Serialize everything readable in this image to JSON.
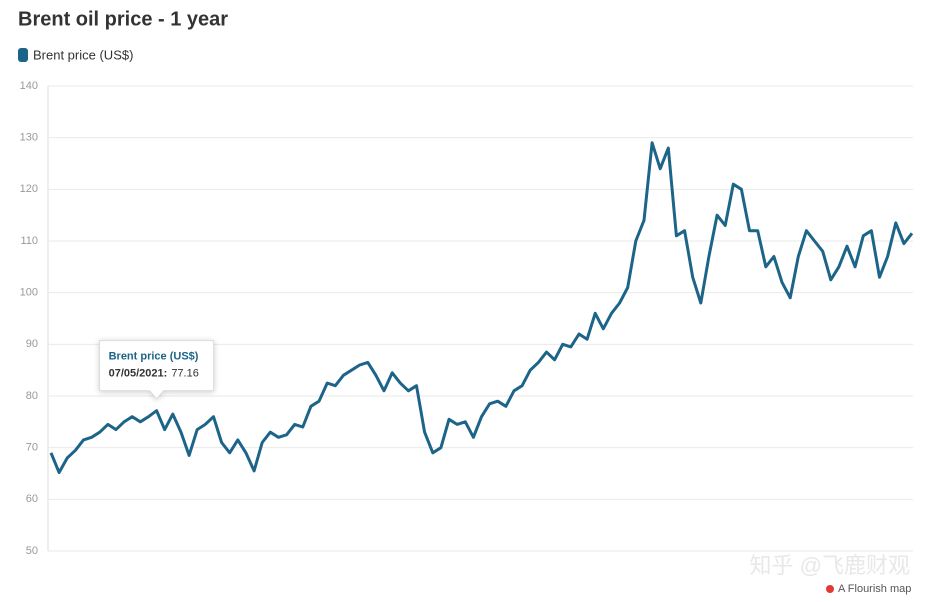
{
  "chart_data": {
    "type": "line",
    "title": "Brent oil price - 1 year",
    "series": [
      {
        "name": "Brent price (US$)",
        "color": "#1d6489",
        "values": [
          69,
          65.2,
          68,
          69.5,
          71.5,
          72,
          73,
          74.5,
          73.5,
          75,
          76,
          75,
          76,
          77.16,
          73.5,
          76.5,
          73,
          68.5,
          73.5,
          74.5,
          76,
          71,
          69,
          71.5,
          69,
          65.5,
          71,
          73,
          72,
          72.5,
          74.5,
          74,
          78,
          79,
          82.5,
          82,
          84,
          85,
          86,
          86.5,
          84,
          81,
          84.5,
          82.5,
          81,
          82,
          73,
          69,
          70,
          75.5,
          74.5,
          75,
          72,
          76,
          78.5,
          79,
          78,
          81,
          82,
          85,
          86.5,
          88.5,
          87,
          90,
          89.5,
          92,
          91,
          96,
          93,
          96,
          98,
          101,
          110,
          114,
          129,
          124,
          128,
          111,
          112,
          103,
          98,
          107,
          115,
          113,
          121,
          120,
          112,
          112,
          105,
          107,
          102,
          99,
          107,
          112,
          110,
          108,
          102.5,
          105,
          109,
          105,
          111,
          112,
          103,
          107,
          113.5,
          109.5,
          111.5
        ]
      }
    ],
    "ylim": [
      50,
      140
    ],
    "yticks": [
      50,
      60,
      70,
      80,
      90,
      100,
      110,
      120,
      130,
      140
    ],
    "grid": true,
    "tooltip": {
      "name": "Brent price (US$)",
      "date": "07/05/2021:",
      "value": 77.16
    },
    "watermark": "知乎 @飞鹿财观",
    "credit": "A Flourish map"
  }
}
